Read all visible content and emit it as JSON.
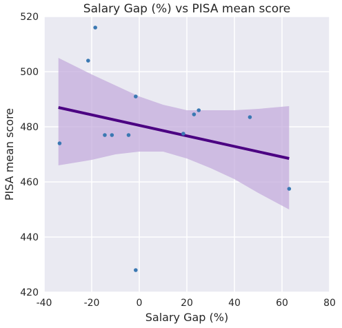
{
  "chart_data": {
    "type": "scatter",
    "title": "Salary Gap (%) vs PISA mean score",
    "xlabel": "Salary Gap (%)",
    "ylabel": "PISA mean score",
    "xlim": [
      -40,
      80
    ],
    "ylim": [
      420,
      520
    ],
    "xticks": [
      -40,
      -20,
      0,
      20,
      40,
      60,
      80
    ],
    "yticks": [
      420,
      440,
      460,
      480,
      500,
      520
    ],
    "grid": true,
    "points": [
      {
        "x": -33.5,
        "y": 474
      },
      {
        "x": -21.5,
        "y": 504
      },
      {
        "x": -18.5,
        "y": 516
      },
      {
        "x": -14.5,
        "y": 477
      },
      {
        "x": -11.5,
        "y": 477
      },
      {
        "x": -4.5,
        "y": 477
      },
      {
        "x": -1.5,
        "y": 491
      },
      {
        "x": -1.5,
        "y": 428
      },
      {
        "x": 18.5,
        "y": 477.5
      },
      {
        "x": 23,
        "y": 484.5
      },
      {
        "x": 25,
        "y": 486
      },
      {
        "x": 46.5,
        "y": 483.5
      },
      {
        "x": 63,
        "y": 457.5
      }
    ],
    "regression": {
      "x": [
        -34,
        63
      ],
      "y": [
        487,
        468.5
      ]
    },
    "confidence_band": {
      "x": [
        -34,
        -20,
        -10,
        0,
        10,
        20,
        30,
        40,
        50,
        63
      ],
      "upper": [
        505,
        499,
        495,
        491,
        488,
        486,
        486,
        486,
        486.5,
        487.5
      ],
      "lower": [
        466,
        468,
        470,
        471,
        471,
        468.5,
        465,
        461,
        456,
        450
      ]
    },
    "colors": {
      "background": "#eaeaf2",
      "grid": "#ffffff",
      "points": "#3a78b2",
      "line": "#4b0082",
      "band": "#c2a8dc"
    }
  }
}
